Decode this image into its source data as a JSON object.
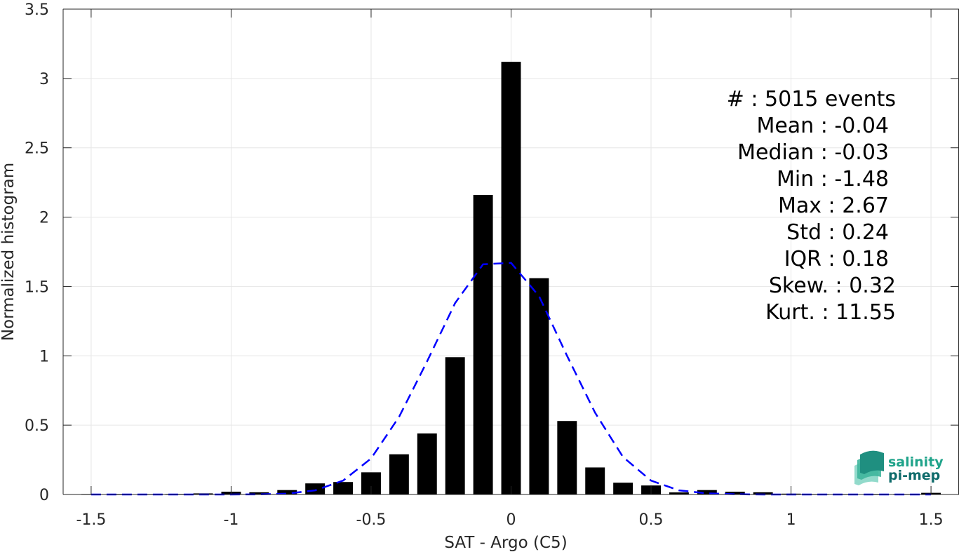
{
  "chart_data": {
    "type": "bar",
    "xlabel": "SAT - Argo (C5)",
    "ylabel": "Normalized histogram",
    "xlim": [
      -1.6,
      1.6
    ],
    "ylim": [
      0,
      3.5
    ],
    "xticks": [
      -1.5,
      -1,
      -0.5,
      0,
      0.5,
      1,
      1.5
    ],
    "xtick_labels": [
      "-1.5",
      "-1",
      "-0.5",
      "0",
      "0.5",
      "1",
      "1.5"
    ],
    "yticks": [
      0,
      0.5,
      1,
      1.5,
      2,
      2.5,
      3,
      3.5
    ],
    "ytick_labels": [
      "0",
      "0.5",
      "1",
      "1.5",
      "2",
      "2.5",
      "3",
      "3.5"
    ],
    "grid": true,
    "bar_width": 0.07,
    "bars": {
      "x": [
        -1.5,
        -1.4,
        -1.3,
        -1.2,
        -1.1,
        -1.0,
        -0.9,
        -0.8,
        -0.7,
        -0.6,
        -0.5,
        -0.4,
        -0.3,
        -0.2,
        -0.1,
        0.0,
        0.1,
        0.2,
        0.3,
        0.4,
        0.5,
        0.6,
        0.7,
        0.8,
        0.9,
        1.0,
        1.1,
        1.2,
        1.3,
        1.4,
        1.5
      ],
      "values": [
        0.003,
        0.002,
        0.003,
        0.004,
        0.008,
        0.02,
        0.016,
        0.032,
        0.08,
        0.09,
        0.16,
        0.29,
        0.44,
        0.99,
        2.16,
        3.12,
        1.56,
        0.53,
        0.195,
        0.085,
        0.065,
        0.015,
        0.032,
        0.02,
        0.016,
        0.006,
        0.003,
        0.003,
        0.002,
        0.003,
        0.012
      ]
    },
    "fit_curve": {
      "style": "dashed",
      "color": "#0000ff",
      "x": [
        -1.5,
        -1.4,
        -1.3,
        -1.2,
        -1.1,
        -1.0,
        -0.9,
        -0.8,
        -0.7,
        -0.6,
        -0.5,
        -0.4,
        -0.3,
        -0.2,
        -0.1,
        0.0,
        0.1,
        0.2,
        0.3,
        0.4,
        0.5,
        0.6,
        0.7,
        0.8,
        0.9,
        1.0,
        1.1,
        1.2,
        1.3,
        1.4,
        1.5
      ],
      "y": [
        0.0,
        0.0,
        0.0,
        0.0,
        0.0,
        0.0,
        0.001,
        0.006,
        0.03,
        0.1,
        0.26,
        0.56,
        0.96,
        1.38,
        1.66,
        1.67,
        1.43,
        1.0,
        0.59,
        0.27,
        0.1,
        0.03,
        0.008,
        0.002,
        0.0,
        0.0,
        0.0,
        0.0,
        0.0,
        0.0,
        0.0
      ]
    },
    "stats": [
      "#  : 5015 events",
      "Mean : -0.04",
      "Median : -0.03",
      "Min : -1.48",
      "Max : 2.67",
      "Std : 0.24",
      "IQR : 0.18",
      "Skew. : 0.32",
      "Kurt. : 11.55"
    ]
  },
  "logo": {
    "line1": "salinity",
    "line2": "pi-mep"
  },
  "colors": {
    "bar": "#000000",
    "fit": "#0000ff",
    "grid": "#e6e6e6",
    "axis": "#262626",
    "logo_teal": "#1fa38a",
    "logo_dark": "#0e6b6b"
  }
}
